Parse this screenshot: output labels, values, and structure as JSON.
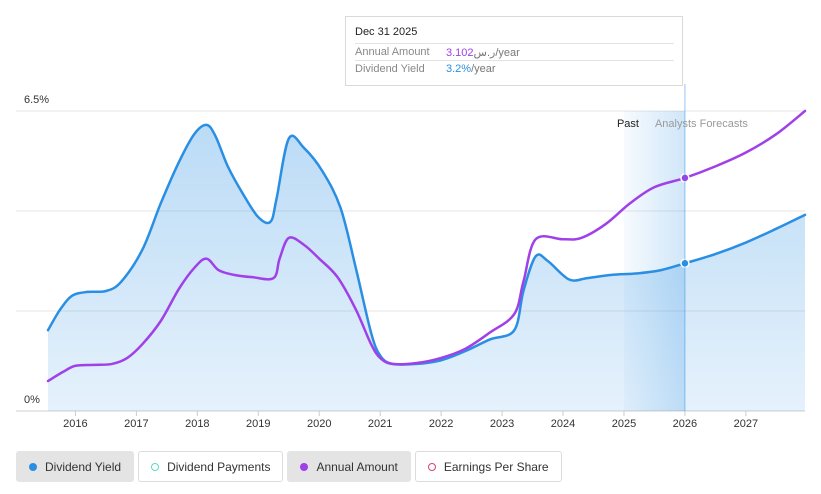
{
  "chart_data": {
    "type": "line",
    "title": "",
    "xlabel": "",
    "ylabel": "",
    "y_ticks": [
      "6.5%",
      "0%"
    ],
    "ylim": [
      0,
      6.5
    ],
    "x_ticks": [
      "2016",
      "2017",
      "2018",
      "2019",
      "2020",
      "2021",
      "2022",
      "2023",
      "2024",
      "2025",
      "2026",
      "2027"
    ],
    "xlim": [
      2015.55,
      2027.97
    ],
    "grid": true,
    "regions": {
      "past_label": "Past",
      "forecast_label": "Analysts Forecasts",
      "forecast_start": 2025.0,
      "cursor": 2026.0
    },
    "series": [
      {
        "name": "Dividend Yield",
        "color": "#2a8fe3",
        "area": true,
        "points": [
          [
            2015.55,
            1.75
          ],
          [
            2015.75,
            2.2
          ],
          [
            2015.95,
            2.5
          ],
          [
            2016.2,
            2.58
          ],
          [
            2016.5,
            2.6
          ],
          [
            2016.75,
            2.8
          ],
          [
            2017.1,
            3.5
          ],
          [
            2017.4,
            4.5
          ],
          [
            2017.7,
            5.4
          ],
          [
            2017.95,
            6.0
          ],
          [
            2018.15,
            6.2
          ],
          [
            2018.3,
            5.95
          ],
          [
            2018.5,
            5.3
          ],
          [
            2018.75,
            4.7
          ],
          [
            2019.0,
            4.2
          ],
          [
            2019.2,
            4.1
          ],
          [
            2019.3,
            4.6
          ],
          [
            2019.5,
            5.9
          ],
          [
            2019.75,
            5.7
          ],
          [
            2020.05,
            5.2
          ],
          [
            2020.35,
            4.4
          ],
          [
            2020.6,
            3.1
          ],
          [
            2020.85,
            1.7
          ],
          [
            2021.0,
            1.2
          ],
          [
            2021.2,
            1.02
          ],
          [
            2021.6,
            1.02
          ],
          [
            2022.0,
            1.1
          ],
          [
            2022.4,
            1.3
          ],
          [
            2022.8,
            1.55
          ],
          [
            2023.2,
            1.75
          ],
          [
            2023.35,
            2.6
          ],
          [
            2023.55,
            3.35
          ],
          [
            2023.75,
            3.25
          ],
          [
            2024.1,
            2.85
          ],
          [
            2024.4,
            2.88
          ],
          [
            2024.8,
            2.95
          ],
          [
            2025.2,
            2.98
          ],
          [
            2025.6,
            3.05
          ],
          [
            2026.0,
            3.2
          ],
          [
            2026.5,
            3.4
          ],
          [
            2027.0,
            3.65
          ],
          [
            2027.5,
            3.95
          ],
          [
            2027.97,
            4.25
          ]
        ],
        "marker_at": 2026.0
      },
      {
        "name": "Annual Amount",
        "color": "#a040e8",
        "area": false,
        "points": [
          [
            2015.55,
            0.65
          ],
          [
            2015.8,
            0.85
          ],
          [
            2016.0,
            0.98
          ],
          [
            2016.3,
            1.0
          ],
          [
            2016.6,
            1.02
          ],
          [
            2016.85,
            1.15
          ],
          [
            2017.1,
            1.45
          ],
          [
            2017.4,
            1.95
          ],
          [
            2017.7,
            2.65
          ],
          [
            2017.95,
            3.1
          ],
          [
            2018.15,
            3.3
          ],
          [
            2018.35,
            3.05
          ],
          [
            2018.6,
            2.95
          ],
          [
            2018.9,
            2.9
          ],
          [
            2019.25,
            2.88
          ],
          [
            2019.35,
            3.3
          ],
          [
            2019.5,
            3.75
          ],
          [
            2019.75,
            3.6
          ],
          [
            2020.0,
            3.3
          ],
          [
            2020.3,
            2.9
          ],
          [
            2020.6,
            2.2
          ],
          [
            2020.85,
            1.45
          ],
          [
            2021.0,
            1.15
          ],
          [
            2021.2,
            1.02
          ],
          [
            2021.6,
            1.04
          ],
          [
            2022.0,
            1.15
          ],
          [
            2022.4,
            1.35
          ],
          [
            2022.8,
            1.7
          ],
          [
            2023.2,
            2.1
          ],
          [
            2023.35,
            2.8
          ],
          [
            2023.55,
            3.72
          ],
          [
            2024.0,
            3.72
          ],
          [
            2024.3,
            3.75
          ],
          [
            2024.7,
            4.05
          ],
          [
            2025.1,
            4.5
          ],
          [
            2025.5,
            4.85
          ],
          [
            2026.0,
            5.05
          ],
          [
            2026.5,
            5.3
          ],
          [
            2027.0,
            5.6
          ],
          [
            2027.5,
            6.0
          ],
          [
            2027.97,
            6.5
          ]
        ],
        "marker_at": 2026.0
      }
    ]
  },
  "tooltip": {
    "date": "Dec 31 2025",
    "rows": [
      {
        "label": "Annual Amount",
        "value": "3.102",
        "unit": "ر.س/year",
        "color": "#a040e8"
      },
      {
        "label": "Dividend Yield",
        "value": "3.2%",
        "unit": "/year",
        "color": "#2a8fe3"
      }
    ]
  },
  "legend": [
    {
      "label": "Dividend Yield",
      "color": "#2a8fe3",
      "active": true
    },
    {
      "label": "Dividend Payments",
      "color": "#5fd8c4",
      "active": false
    },
    {
      "label": "Annual Amount",
      "color": "#a040e8",
      "active": true
    },
    {
      "label": "Earnings Per Share",
      "color": "#d0457a",
      "active": false
    }
  ]
}
